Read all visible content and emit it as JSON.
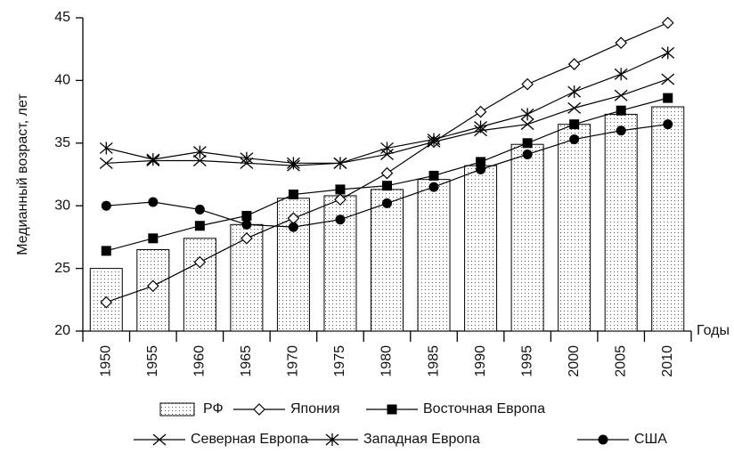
{
  "chart_data": {
    "type": "combo",
    "y_label": "Медианный возраст, лет",
    "x_label": "Годы",
    "categories": [
      "1950",
      "1955",
      "1960",
      "1965",
      "1970",
      "1975",
      "1980",
      "1985",
      "1990",
      "1995",
      "2000",
      "2005",
      "2010"
    ],
    "ylim": [
      20,
      45
    ],
    "yticks": [
      20,
      25,
      30,
      35,
      40,
      45
    ],
    "grid": false,
    "series": [
      {
        "name": "РФ",
        "type": "bar",
        "color": "#000000",
        "values": [
          25.0,
          26.5,
          27.4,
          28.5,
          30.6,
          30.8,
          31.3,
          32.1,
          33.2,
          34.9,
          36.5,
          37.3,
          37.9
        ]
      },
      {
        "name": "Япония",
        "type": "line",
        "marker": "diamond",
        "color": "#000000",
        "values": [
          22.3,
          23.6,
          25.5,
          27.4,
          29.0,
          30.5,
          32.6,
          35.1,
          37.5,
          39.7,
          41.3,
          43.0,
          44.6
        ]
      },
      {
        "name": "Восточная Европа",
        "type": "line",
        "marker": "square",
        "color": "#000000",
        "values": [
          26.4,
          27.4,
          28.4,
          29.2,
          30.9,
          31.3,
          31.6,
          32.4,
          33.5,
          35.0,
          36.5,
          37.6,
          38.6
        ]
      },
      {
        "name": "Северная Европа",
        "type": "line",
        "marker": "x",
        "color": "#000000",
        "values": [
          33.4,
          33.6,
          33.6,
          33.4,
          33.2,
          33.4,
          34.1,
          35.1,
          36.0,
          36.5,
          37.8,
          38.8,
          40.1
        ]
      },
      {
        "name": "Западная Европа",
        "type": "line",
        "marker": "asterisk",
        "color": "#000000",
        "values": [
          34.6,
          33.7,
          34.3,
          33.8,
          33.4,
          33.4,
          34.6,
          35.3,
          36.3,
          37.3,
          39.1,
          40.5,
          42.2
        ]
      },
      {
        "name": "США",
        "type": "line",
        "marker": "circle",
        "color": "#000000",
        "values": [
          30.0,
          30.3,
          29.7,
          28.5,
          28.3,
          28.9,
          30.2,
          31.5,
          32.9,
          34.1,
          35.3,
          36.0,
          36.5
        ]
      }
    ]
  }
}
